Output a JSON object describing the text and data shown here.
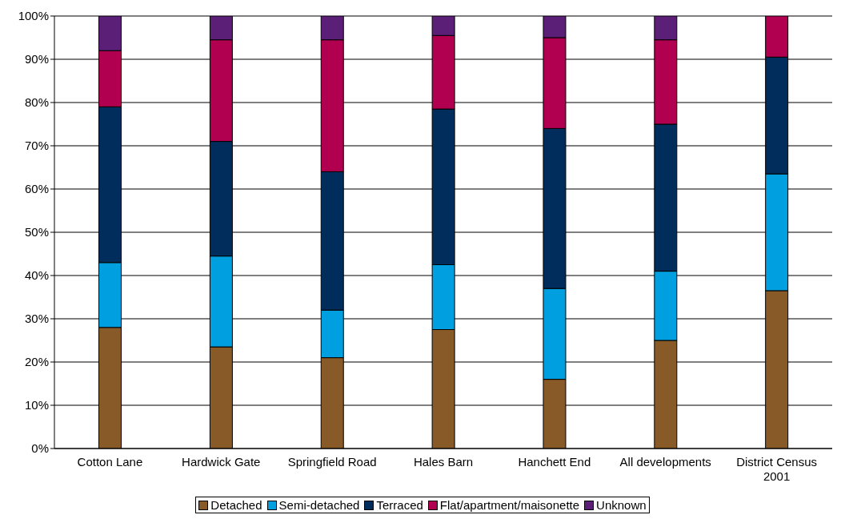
{
  "chart_data": {
    "type": "bar",
    "stacked": true,
    "categories": [
      "Cotton Lane",
      "Hardwick Gate",
      "Springfield Road",
      "Hales Barn",
      "Hanchett End",
      "All developments",
      "District Census 2001"
    ],
    "series": [
      {
        "name": "Detached",
        "color": "#875a28",
        "values": [
          28,
          23.5,
          21,
          27.5,
          16,
          25,
          36.5
        ]
      },
      {
        "name": "Semi-detached",
        "color": "#00a0e0",
        "values": [
          15,
          21,
          11,
          15,
          21,
          16,
          27
        ]
      },
      {
        "name": "Terraced",
        "color": "#002d5c",
        "values": [
          36,
          26.5,
          32,
          36,
          37,
          34,
          27
        ]
      },
      {
        "name": "Flat/apartment/maisonette",
        "color": "#b0004f",
        "values": [
          13,
          23.5,
          30.5,
          17,
          21,
          19.5,
          9.5
        ]
      },
      {
        "name": "Unknown",
        "color": "#5c1f78",
        "values": [
          8,
          5.5,
          5.5,
          4.5,
          5,
          5.5,
          0
        ]
      }
    ],
    "ylim": [
      0,
      100
    ],
    "yticks": [
      {
        "value": 0,
        "label": "0%"
      },
      {
        "value": 10,
        "label": "10%"
      },
      {
        "value": 20,
        "label": "20%"
      },
      {
        "value": 30,
        "label": "30%"
      },
      {
        "value": 40,
        "label": "40%"
      },
      {
        "value": 50,
        "label": "50%"
      },
      {
        "value": 60,
        "label": "60%"
      },
      {
        "value": 70,
        "label": "70%"
      },
      {
        "value": 80,
        "label": "80%"
      },
      {
        "value": 90,
        "label": "90%"
      },
      {
        "value": 100,
        "label": "100%"
      }
    ],
    "grid": "y",
    "legend": "bottom"
  }
}
